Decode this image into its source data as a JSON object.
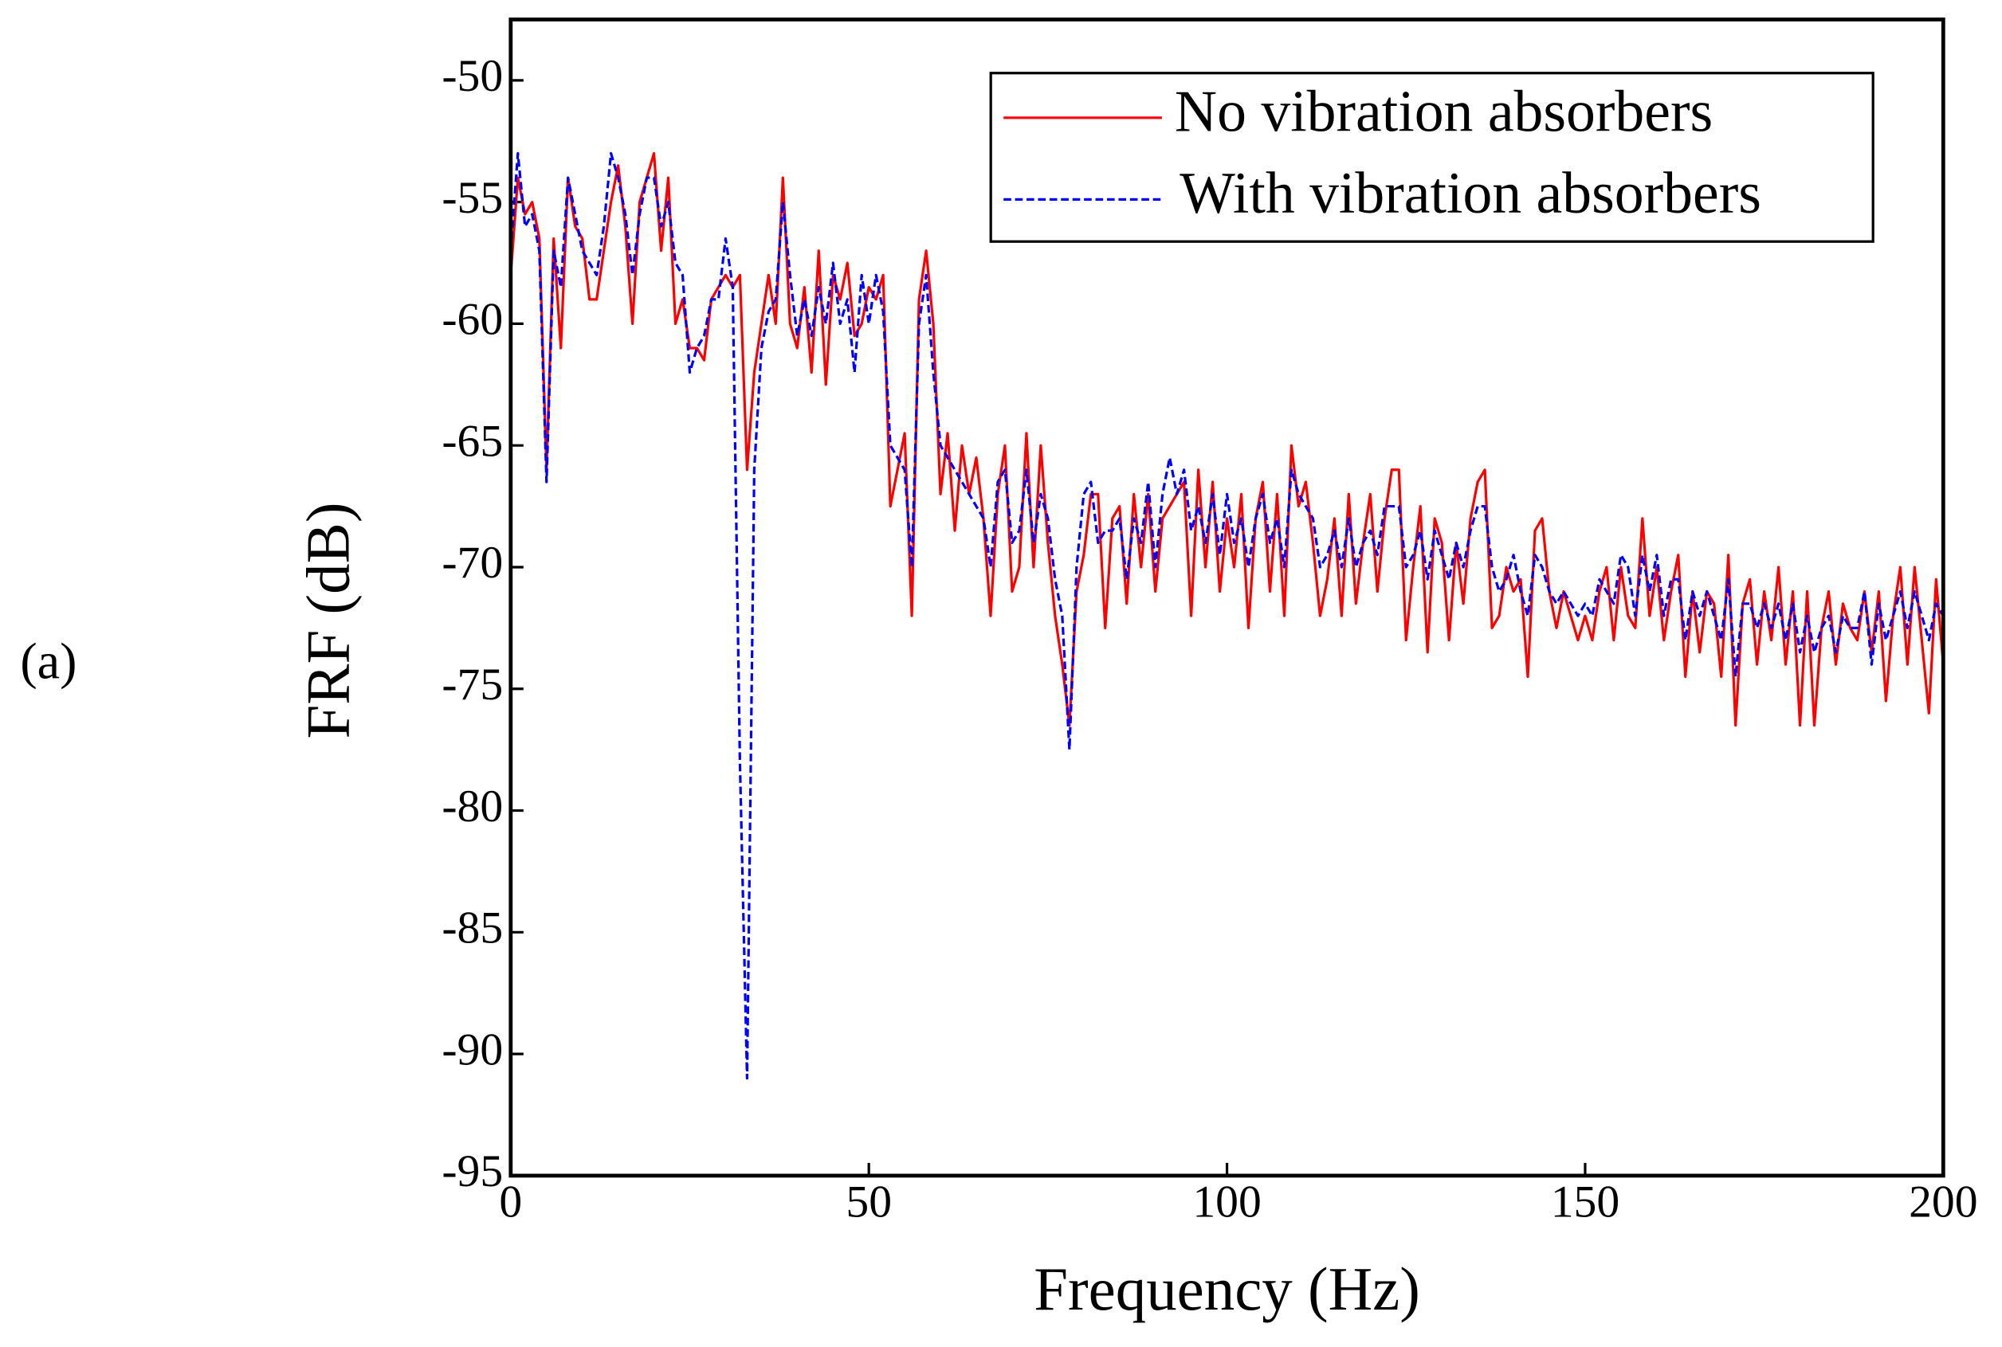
{
  "panel_label": "(a)",
  "chart_data": {
    "type": "line",
    "x_label": "Frequency (Hz)",
    "y_label": "FRF (dB)",
    "xlim": [
      0,
      200
    ],
    "ylim": [
      -95,
      -47.5
    ],
    "xticks": [
      0,
      50,
      100,
      150,
      200
    ],
    "yticks": [
      -95,
      -90,
      -85,
      -80,
      -75,
      -70,
      -65,
      -60,
      -55,
      -50
    ],
    "grid": false,
    "legend": "upper right",
    "x": [
      0,
      1,
      2,
      3,
      4,
      5,
      6,
      7,
      8,
      9,
      10,
      11,
      12,
      13,
      14,
      15,
      16,
      17,
      18,
      19,
      20,
      21,
      22,
      23,
      24,
      25,
      26,
      27,
      28,
      29,
      30,
      31,
      32,
      33,
      34,
      35,
      36,
      37,
      38,
      39,
      40,
      41,
      42,
      43,
      44,
      45,
      46,
      47,
      48,
      49,
      50,
      51,
      52,
      53,
      54,
      55,
      56,
      57,
      58,
      59,
      60,
      61,
      62,
      63,
      64,
      65,
      66,
      67,
      68,
      69,
      70,
      71,
      72,
      73,
      74,
      75,
      76,
      77,
      78,
      79,
      80,
      81,
      82,
      83,
      84,
      85,
      86,
      87,
      88,
      89,
      90,
      91,
      92,
      93,
      94,
      95,
      96,
      97,
      98,
      99,
      100,
      101,
      102,
      103,
      104,
      105,
      106,
      107,
      108,
      109,
      110,
      111,
      112,
      113,
      114,
      115,
      116,
      117,
      118,
      119,
      120,
      121,
      122,
      123,
      124,
      125,
      126,
      127,
      128,
      129,
      130,
      131,
      132,
      133,
      134,
      135,
      136,
      137,
      138,
      139,
      140,
      141,
      142,
      143,
      144,
      145,
      146,
      147,
      148,
      149,
      150,
      151,
      152,
      153,
      154,
      155,
      156,
      157,
      158,
      159,
      160,
      161,
      162,
      163,
      164,
      165,
      166,
      167,
      168,
      169,
      170,
      171,
      172,
      173,
      174,
      175,
      176,
      177,
      178,
      179,
      180,
      181,
      182,
      183,
      184,
      185,
      186,
      187,
      188,
      189,
      190,
      191,
      192,
      193,
      194,
      195,
      196,
      197,
      198,
      199,
      200
    ],
    "series": [
      {
        "name": "No vibration absorbers",
        "color": "#ff0000",
        "dash": false,
        "values": [
          -58,
          -54,
          -55.5,
          -55,
          -56.5,
          -66,
          -56.5,
          -61,
          -54,
          -56,
          -56.5,
          -59,
          -59,
          -57,
          -55,
          -53.5,
          -56,
          -60,
          -55,
          -54,
          -53,
          -57,
          -54,
          -60,
          -59,
          -61,
          -61,
          -61.5,
          -59,
          -58.5,
          -58,
          -58.5,
          -58,
          -66,
          -62,
          -60,
          -58,
          -60,
          -54,
          -60,
          -61,
          -58.5,
          -62,
          -57,
          -62.5,
          -58,
          -59,
          -57.5,
          -60.5,
          -60,
          -58.5,
          -59,
          -58,
          -67.5,
          -66,
          -64.5,
          -72,
          -59,
          -57,
          -60,
          -67,
          -64.5,
          -68.5,
          -65,
          -67,
          -65.5,
          -68,
          -72,
          -67,
          -65,
          -71,
          -70,
          -64.5,
          -70,
          -65,
          -69,
          -72,
          -74,
          -76.5,
          -71,
          -69.5,
          -67,
          -67,
          -72.5,
          -68,
          -67.5,
          -71.5,
          -67,
          -70,
          -67,
          -71,
          -68,
          -67.5,
          -67,
          -66.5,
          -72,
          -66,
          -70,
          -66.5,
          -71,
          -68,
          -70,
          -67,
          -72.5,
          -68,
          -66.5,
          -71,
          -67,
          -72,
          -65,
          -67.5,
          -66.5,
          -69,
          -72,
          -70.5,
          -68,
          -72,
          -67,
          -71.5,
          -69,
          -67,
          -71,
          -68,
          -66,
          -66,
          -73,
          -70,
          -67.5,
          -73.5,
          -68,
          -69,
          -73,
          -69,
          -71.5,
          -68,
          -66.5,
          -66,
          -72.5,
          -72,
          -70,
          -71,
          -70.5,
          -74.5,
          -68.5,
          -68,
          -71,
          -72.5,
          -71,
          -72,
          -73,
          -72,
          -73,
          -71,
          -70,
          -73,
          -70,
          -72,
          -72.5,
          -68,
          -72,
          -70,
          -73,
          -71,
          -69.5,
          -74.5,
          -71,
          -73.5,
          -71,
          -71.5,
          -74.5,
          -69.5,
          -76.5,
          -71.5,
          -70.5,
          -74,
          -71,
          -73,
          -70,
          -74,
          -71,
          -76.5,
          -71,
          -76.5,
          -72.5,
          -71,
          -74,
          -71.5,
          -72.5,
          -73,
          -71,
          -73.5,
          -71,
          -75.5,
          -72,
          -70,
          -74,
          -70,
          -73,
          -76,
          -70.5,
          -74
        ]
      },
      {
        "name": "With vibration absorbers",
        "color": "#0000ff",
        "dash": true,
        "values": [
          -57,
          -53,
          -56,
          -55.5,
          -57,
          -66.5,
          -57,
          -58.5,
          -54,
          -55.5,
          -57,
          -57.5,
          -58,
          -56,
          -53,
          -54,
          -55.5,
          -58,
          -55.5,
          -54,
          -54,
          -56,
          -55,
          -57.5,
          -58,
          -62,
          -61,
          -60.5,
          -59,
          -59,
          -56.5,
          -58.5,
          -78,
          -91,
          -66,
          -61,
          -59.5,
          -59,
          -55,
          -58,
          -60.5,
          -59,
          -60.5,
          -58.5,
          -60,
          -57.5,
          -60,
          -59,
          -62,
          -58,
          -60,
          -58,
          -59.5,
          -65,
          -65.5,
          -66,
          -70,
          -60,
          -58,
          -62,
          -65,
          -65.5,
          -66,
          -66.5,
          -67,
          -67.5,
          -68,
          -70,
          -66.5,
          -66,
          -69,
          -68.5,
          -66,
          -69,
          -67,
          -68,
          -70.5,
          -72,
          -77.5,
          -70,
          -67,
          -66.5,
          -69,
          -68.5,
          -68.5,
          -68,
          -70.5,
          -68,
          -69,
          -66.5,
          -70,
          -67,
          -65.5,
          -67,
          -66,
          -68.5,
          -67.5,
          -69,
          -67,
          -69.5,
          -67,
          -69,
          -68,
          -70,
          -68,
          -67,
          -69,
          -68,
          -70,
          -66,
          -67,
          -67.5,
          -68,
          -70,
          -69.5,
          -68.5,
          -70,
          -68,
          -70,
          -69,
          -68.5,
          -69.5,
          -67.5,
          -67.5,
          -67.5,
          -70,
          -69.5,
          -68.5,
          -70.5,
          -68.5,
          -69.5,
          -70.5,
          -69,
          -70,
          -68.5,
          -67.5,
          -67.5,
          -70,
          -71,
          -70.5,
          -69.5,
          -71,
          -72,
          -69.5,
          -70,
          -71,
          -71.5,
          -71,
          -71.5,
          -72,
          -71.5,
          -72,
          -70.5,
          -71,
          -71.5,
          -69.5,
          -70,
          -72,
          -69.5,
          -71,
          -69.5,
          -72,
          -70.5,
          -70.5,
          -73,
          -71,
          -72,
          -71,
          -72,
          -73,
          -70.5,
          -74.5,
          -71.5,
          -71.5,
          -72.5,
          -71.5,
          -72.5,
          -71.5,
          -73,
          -71.5,
          -73.5,
          -72,
          -73.5,
          -72.5,
          -72,
          -73.5,
          -72,
          -72.5,
          -72.5,
          -71,
          -74,
          -71.5,
          -73,
          -72,
          -71,
          -72.5,
          -71,
          -72,
          -73,
          -71.5,
          -72
        ]
      }
    ]
  }
}
